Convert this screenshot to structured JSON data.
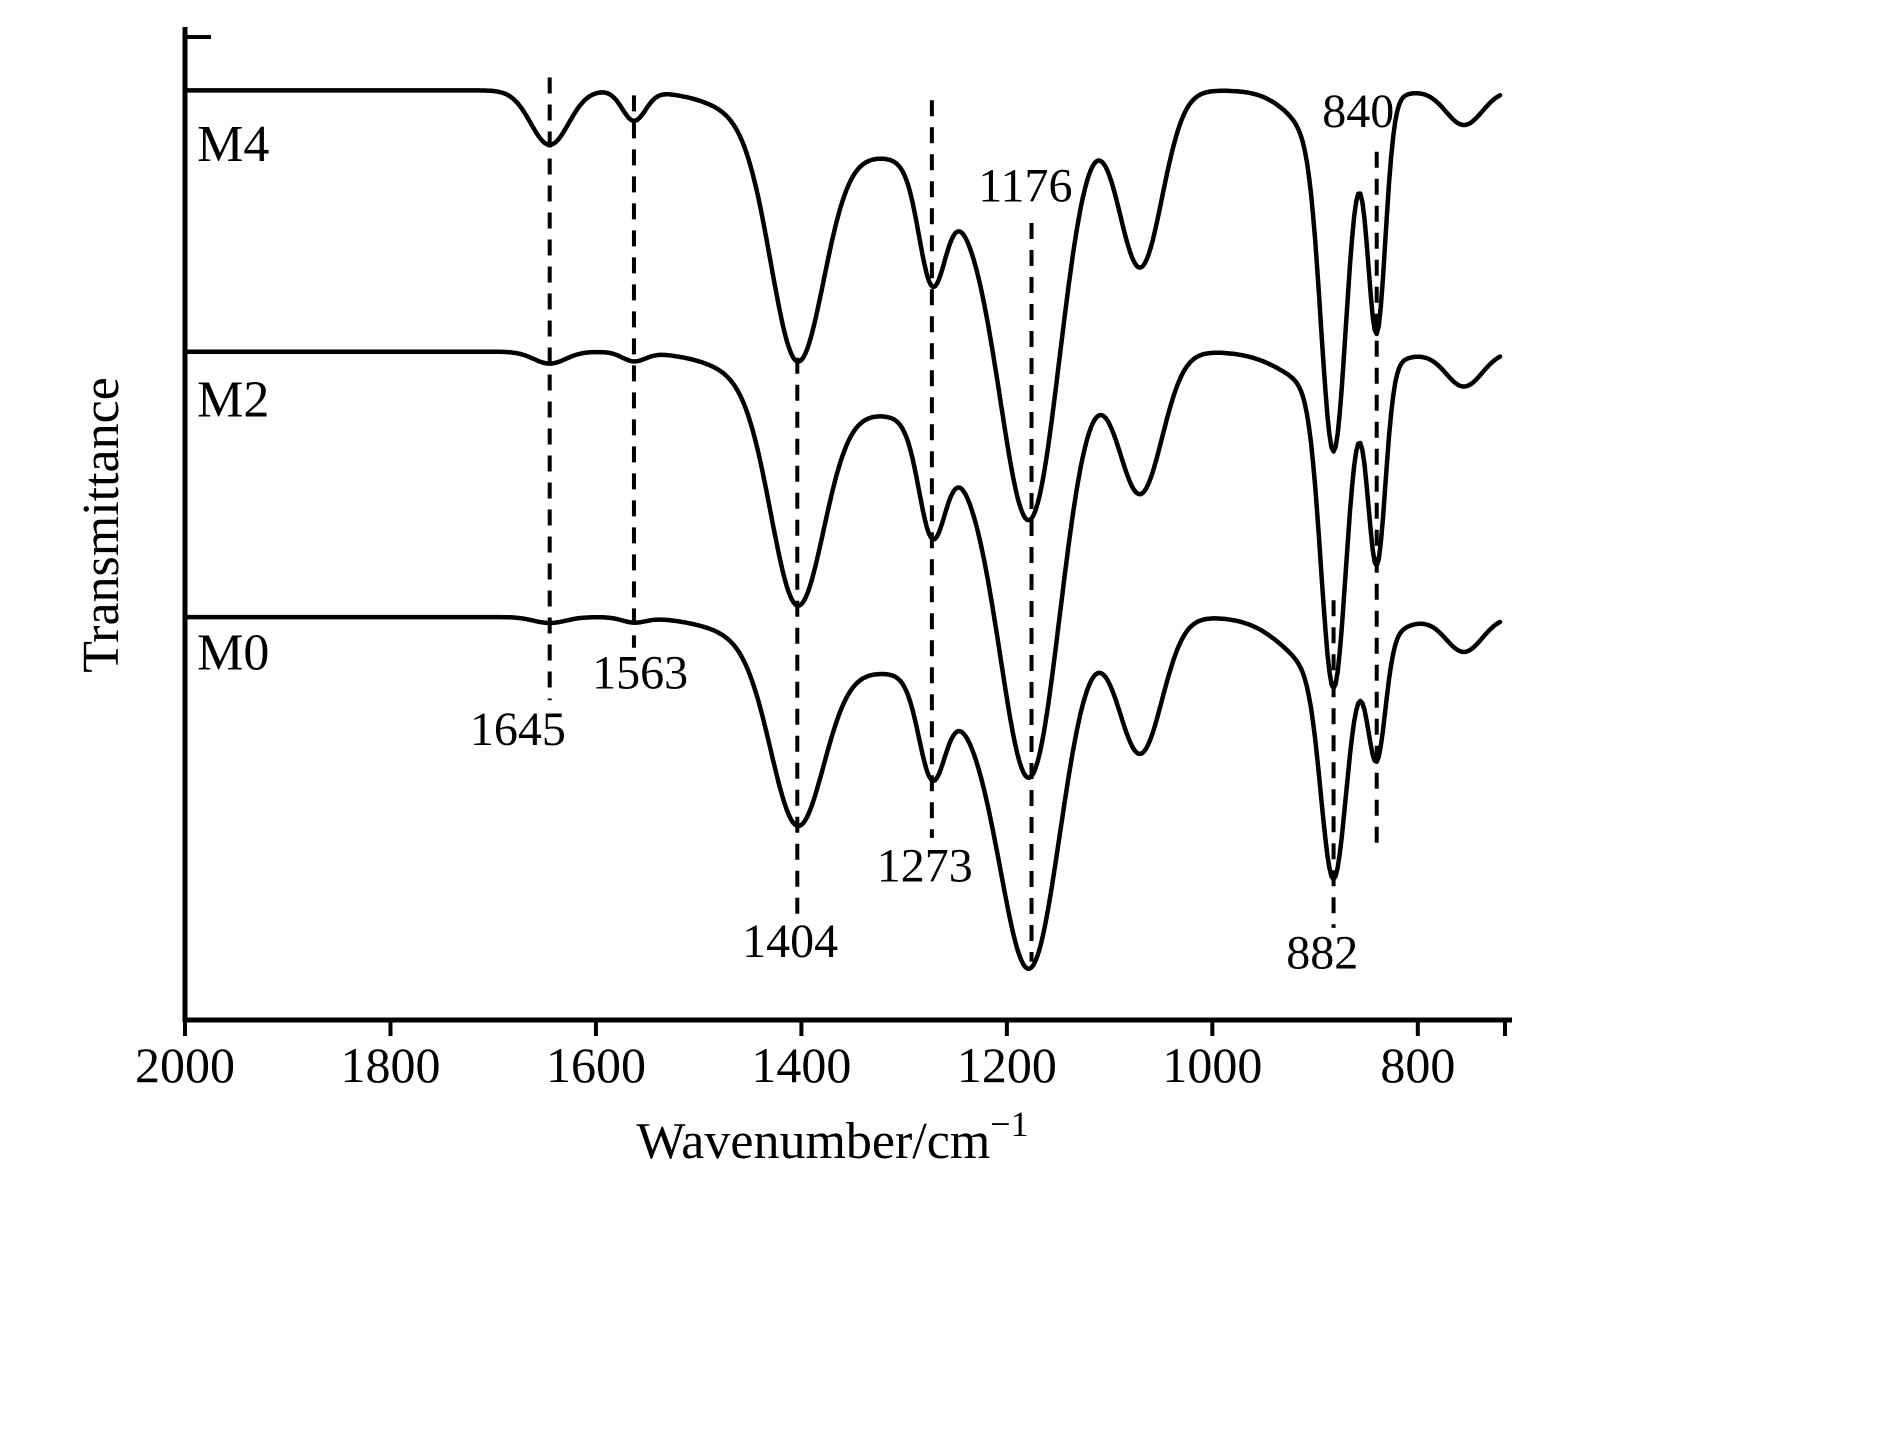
{
  "figure": {
    "background": "#ffffff",
    "line_color": "#000000",
    "text_color": "#000000"
  },
  "chart_data": {
    "type": "line",
    "chart_kind": "FTIR transmittance spectra, stacked with vertical offsets",
    "title": "",
    "xlabel": "Wavenumber/cm",
    "xlabel_superscript": "−1",
    "ylabel": "Transmittance",
    "x_range": [
      2000,
      720
    ],
    "x_axis_reversed": true,
    "x_ticks": [
      "2000",
      "1800",
      "1600",
      "1400",
      "1200",
      "1000",
      "800"
    ],
    "x_tick_values": [
      2000,
      1800,
      1600,
      1400,
      1200,
      1000,
      800
    ],
    "y_range": [
      0,
      1000
    ],
    "y_ticks": [],
    "grid": false,
    "legend": "curve labels drawn at left end of each spectrum",
    "series": [
      {
        "name": "M4",
        "label": "M4",
        "baseline": 939,
        "label_x": 1953,
        "label_y": 886,
        "peaks": [
          {
            "center": 1645,
            "sigma": 26,
            "depth": 55
          },
          {
            "center": 1563,
            "sigma": 16,
            "depth": 30
          },
          {
            "center": 1404,
            "sigma": 36,
            "depth": 225
          },
          {
            "center": 1404,
            "sigma": 80,
            "depth": 42
          },
          {
            "center": 1335,
            "sigma": 55,
            "depth": 30
          },
          {
            "center": 1273,
            "sigma": 18,
            "depth": 105
          },
          {
            "center": 1220,
            "sigma": 80,
            "depth": 125
          },
          {
            "center": 1176,
            "sigma": 40,
            "depth": 340
          },
          {
            "center": 1070,
            "sigma": 30,
            "depth": 175
          },
          {
            "center": 885,
            "sigma": 45,
            "depth": 55
          },
          {
            "center": 882,
            "sigma": 17,
            "depth": 310
          },
          {
            "center": 840,
            "sigma": 12,
            "depth": 225
          },
          {
            "center": 755,
            "sigma": 25,
            "depth": 35
          }
        ]
      },
      {
        "name": "M2",
        "label": "M2",
        "baseline": 675,
        "label_x": 1953,
        "label_y": 628,
        "peaks": [
          {
            "center": 1645,
            "sigma": 22,
            "depth": 12
          },
          {
            "center": 1563,
            "sigma": 16,
            "depth": 9
          },
          {
            "center": 1404,
            "sigma": 36,
            "depth": 210
          },
          {
            "center": 1404,
            "sigma": 80,
            "depth": 40
          },
          {
            "center": 1335,
            "sigma": 55,
            "depth": 28
          },
          {
            "center": 1273,
            "sigma": 18,
            "depth": 100
          },
          {
            "center": 1220,
            "sigma": 80,
            "depth": 120
          },
          {
            "center": 1176,
            "sigma": 40,
            "depth": 340
          },
          {
            "center": 1070,
            "sigma": 30,
            "depth": 140
          },
          {
            "center": 885,
            "sigma": 55,
            "depth": 40
          },
          {
            "center": 882,
            "sigma": 17,
            "depth": 300
          },
          {
            "center": 840,
            "sigma": 12,
            "depth": 195
          },
          {
            "center": 755,
            "sigma": 25,
            "depth": 35
          }
        ]
      },
      {
        "name": "M0",
        "label": "M0",
        "baseline": 407,
        "label_x": 1953,
        "label_y": 372,
        "peaks": [
          {
            "center": 1645,
            "sigma": 22,
            "depth": 6
          },
          {
            "center": 1563,
            "sigma": 16,
            "depth": 5
          },
          {
            "center": 1404,
            "sigma": 36,
            "depth": 170
          },
          {
            "center": 1404,
            "sigma": 80,
            "depth": 35
          },
          {
            "center": 1335,
            "sigma": 55,
            "depth": 26
          },
          {
            "center": 1273,
            "sigma": 18,
            "depth": 90
          },
          {
            "center": 1220,
            "sigma": 80,
            "depth": 100
          },
          {
            "center": 1176,
            "sigma": 40,
            "depth": 280
          },
          {
            "center": 1070,
            "sigma": 30,
            "depth": 135
          },
          {
            "center": 885,
            "sigma": 55,
            "depth": 60
          },
          {
            "center": 882,
            "sigma": 17,
            "depth": 205
          },
          {
            "center": 840,
            "sigma": 12,
            "depth": 115
          },
          {
            "center": 755,
            "sigma": 25,
            "depth": 35
          }
        ]
      }
    ],
    "peak_annotations": [
      {
        "label": "1645",
        "line_x": 1645,
        "line_y_top": 952,
        "line_y_bottom": 323,
        "text_x": 1676,
        "text_y": 295
      },
      {
        "label": "1563",
        "line_x": 1563,
        "line_y_top": 934,
        "line_y_bottom": 376,
        "text_x": 1557,
        "text_y": 352
      },
      {
        "label": "1404",
        "line_x": 1404,
        "line_y_top": 669,
        "line_y_bottom": 103,
        "text_x": 1411,
        "text_y": 81
      },
      {
        "label": "1273",
        "line_x": 1273,
        "line_y_top": 929,
        "line_y_bottom": 184,
        "text_x": 1280,
        "text_y": 157
      },
      {
        "label": "1176",
        "line_x": 1176,
        "line_y_top": 805,
        "line_y_bottom": 59,
        "text_x": 1182,
        "text_y": 844
      },
      {
        "label": "882",
        "line_x": 882,
        "line_y_top": 424,
        "line_y_bottom": 93,
        "text_x": 893,
        "text_y": 69
      },
      {
        "label": "840",
        "line_x": 840,
        "line_y_top": 877,
        "line_y_bottom": 177,
        "text_x": 858,
        "text_y": 919
      }
    ]
  }
}
